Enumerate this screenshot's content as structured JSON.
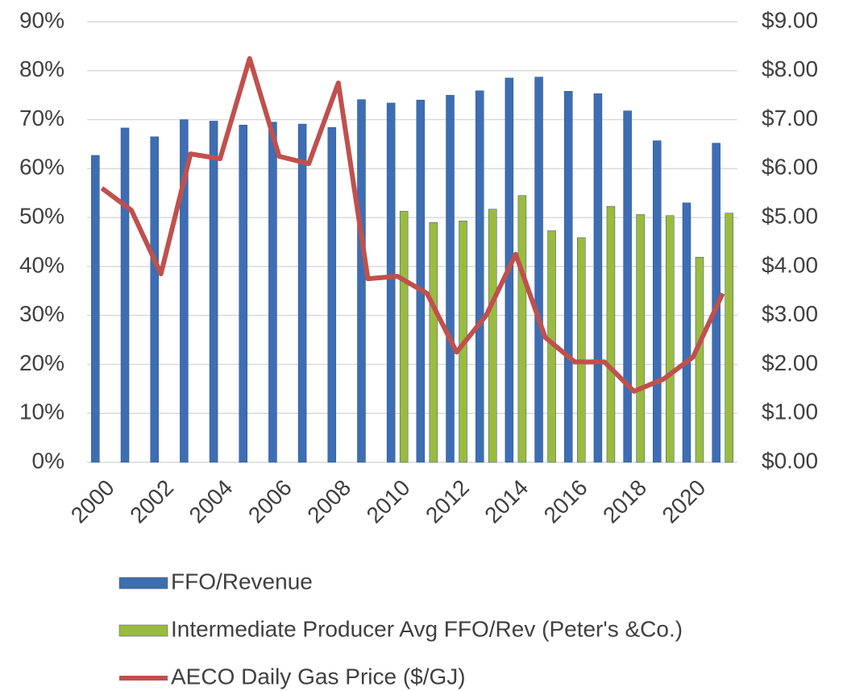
{
  "chart_data": {
    "type": "bar",
    "categories": [
      "2000",
      null,
      "2002",
      null,
      "2004",
      null,
      "2006",
      null,
      "2008",
      null,
      "2010",
      null,
      "2012",
      null,
      "2014",
      null,
      "2016",
      null,
      "2018",
      null,
      "2020",
      null
    ],
    "series": [
      {
        "name": "FFO/Revenue",
        "color": "#3d6eb4",
        "values": [
          62.7,
          68.3,
          66.5,
          70,
          69.7,
          68.9,
          69.5,
          69.1,
          68.4,
          74.1,
          73.4,
          74,
          75,
          75.9,
          78.5,
          78.7,
          75.8,
          75.3,
          71.8,
          65.7,
          53,
          65.2
        ]
      },
      {
        "name": "Intermediate Producer Avg FFO/Rev (Peter's &Co.)",
        "color": "#9bbb3f",
        "values": [
          null,
          null,
          null,
          null,
          null,
          null,
          null,
          null,
          null,
          null,
          51.3,
          49,
          49.3,
          51.7,
          54.5,
          47.3,
          45.9,
          52.3,
          50.6,
          50.4,
          41.9,
          50.9
        ]
      },
      {
        "name": "AECO Daily Gas Price ($/GJ)",
        "color": "#c0504d",
        "type": "line",
        "axis": "y2",
        "values": [
          5.6,
          5.15,
          3.85,
          6.3,
          6.2,
          8.25,
          6.25,
          6.1,
          7.75,
          3.75,
          3.8,
          3.45,
          2.25,
          3.0,
          4.25,
          2.55,
          2.05,
          2.05,
          1.45,
          1.7,
          2.15,
          3.45
        ]
      }
    ],
    "ylim": [
      0,
      90
    ],
    "yticks": [
      {
        "value": 0,
        "label": "0%"
      },
      {
        "value": 10,
        "label": "10%"
      },
      {
        "value": 20,
        "label": "20%"
      },
      {
        "value": 30,
        "label": "30%"
      },
      {
        "value": 40,
        "label": "40%"
      },
      {
        "value": 50,
        "label": "50%"
      },
      {
        "value": 60,
        "label": "60%"
      },
      {
        "value": 70,
        "label": "70%"
      },
      {
        "value": 80,
        "label": "80%"
      },
      {
        "value": 90,
        "label": "90%"
      }
    ],
    "y2lim": [
      0,
      9
    ],
    "y2ticks": [
      {
        "value": 0,
        "label": "$0.00"
      },
      {
        "value": 1,
        "label": "$1.00"
      },
      {
        "value": 2,
        "label": "$2.00"
      },
      {
        "value": 3,
        "label": "$3.00"
      },
      {
        "value": 4,
        "label": "$4.00"
      },
      {
        "value": 5,
        "label": "$5.00"
      },
      {
        "value": 6,
        "label": "$6.00"
      },
      {
        "value": 7,
        "label": "$7.00"
      },
      {
        "value": 8,
        "label": "$8.00"
      },
      {
        "value": 9,
        "label": "$9.00"
      }
    ],
    "grid": true,
    "legend": "bottom"
  }
}
